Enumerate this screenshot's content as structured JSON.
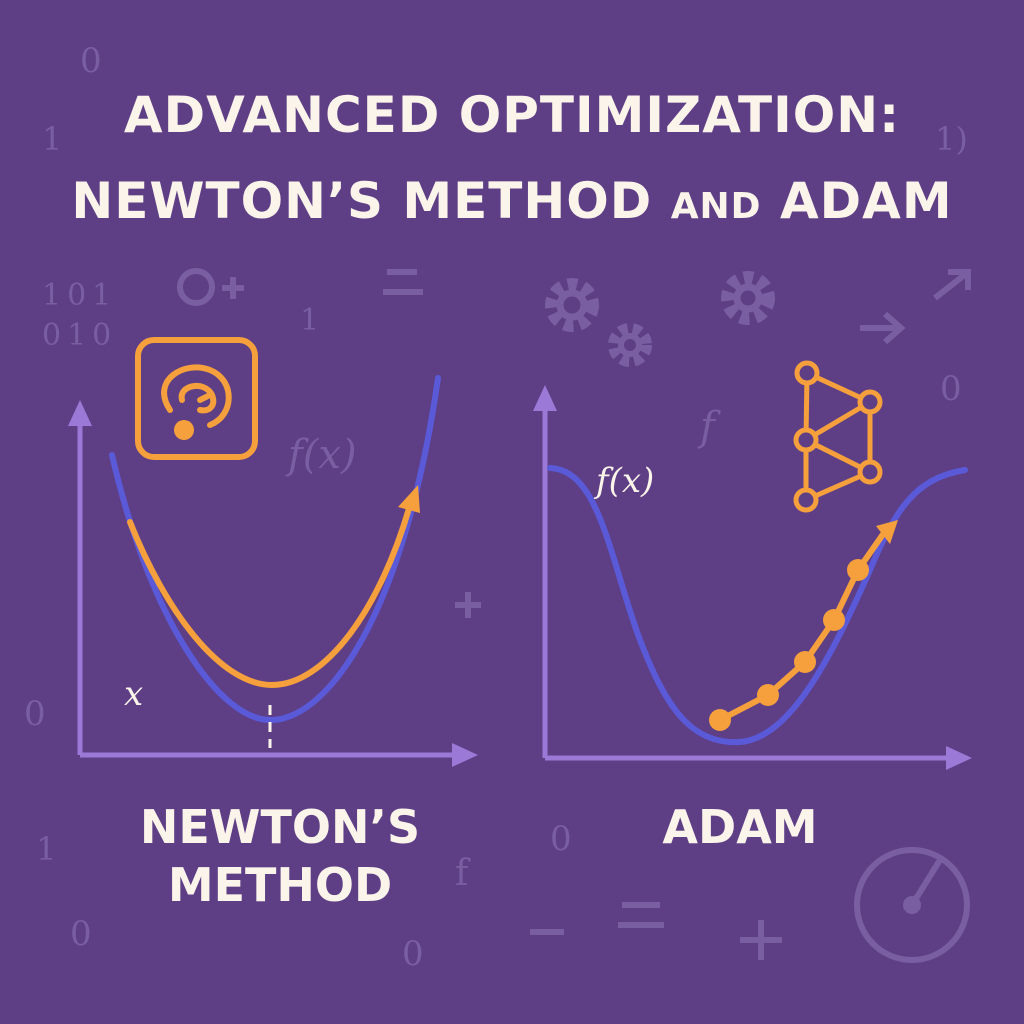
{
  "title": {
    "line1": "ADVANCED OPTIMIZATION:",
    "line2_part1": "NEWTON’S METHOD ",
    "line2_and": "AND",
    "line2_part2": " ADAM"
  },
  "panels": {
    "newton": {
      "caption_line1": "NEWTON’S",
      "caption_line2": "METHOD",
      "axis_label_x": "x",
      "watermark_fx": "f(x)",
      "icon": "spiral-target-icon"
    },
    "adam": {
      "caption": "ADAM",
      "function_label": "f(x)",
      "watermark_f": "f",
      "icon": "neural-network-icon"
    }
  },
  "background_glyphs": [
    "0",
    "1",
    "1)",
    "101",
    "010",
    "1",
    "0",
    "0",
    "1",
    "0",
    "0",
    "f",
    "0"
  ],
  "colors": {
    "background": "#5e3f86",
    "curve_blue": "#5a5ad8",
    "path_orange": "#f5a03c",
    "axis_purple": "#9a7ad6",
    "text_cream": "#fbf4ea",
    "faint": "#7a5ea2"
  }
}
